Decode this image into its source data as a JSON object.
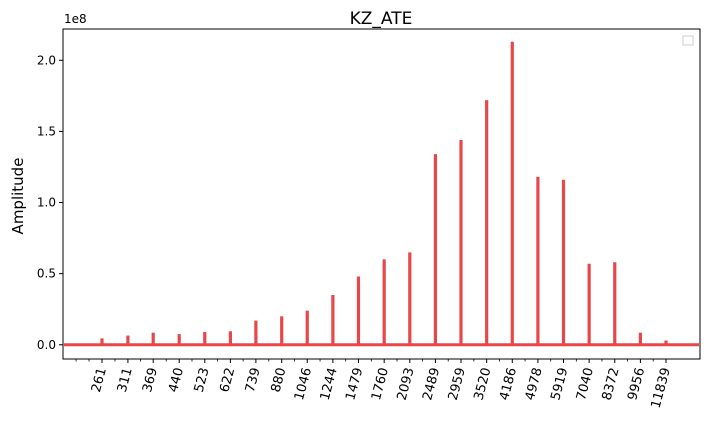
{
  "chart_data": {
    "type": "line",
    "title": "KZ_ATE",
    "xlabel": "",
    "ylabel": "Amplitude",
    "y_multiplier_label": "1e8",
    "ylim": [
      -0.1,
      2.22
    ],
    "yticks": [
      0.0,
      0.5,
      1.0,
      1.5,
      2.0
    ],
    "ytick_labels": [
      "0.0",
      "0.5",
      "1.0",
      "1.5",
      "2.0"
    ],
    "x_scale": "log",
    "xtick_labels": [
      "261",
      "311",
      "369",
      "440",
      "523",
      "622",
      "739",
      "880",
      "1046",
      "1244",
      "1479",
      "1760",
      "2093",
      "2489",
      "2959",
      "3520",
      "4186",
      "4978",
      "5919",
      "7040",
      "8372",
      "9956",
      "11839"
    ],
    "xticks": [
      261,
      311,
      369,
      440,
      523,
      622,
      739,
      880,
      1046,
      1244,
      1479,
      1760,
      2093,
      2489,
      2959,
      3520,
      4186,
      4978,
      5919,
      7040,
      8372,
      9956,
      11839
    ],
    "series": [
      {
        "color": "#e8474a",
        "peaks": [
          {
            "x": 261,
            "y": 0.045
          },
          {
            "x": 311,
            "y": 0.065
          },
          {
            "x": 369,
            "y": 0.085
          },
          {
            "x": 440,
            "y": 0.075
          },
          {
            "x": 523,
            "y": 0.09
          },
          {
            "x": 622,
            "y": 0.095
          },
          {
            "x": 739,
            "y": 0.17
          },
          {
            "x": 880,
            "y": 0.2
          },
          {
            "x": 1046,
            "y": 0.24
          },
          {
            "x": 1244,
            "y": 0.35
          },
          {
            "x": 1479,
            "y": 0.48
          },
          {
            "x": 1760,
            "y": 0.6
          },
          {
            "x": 2093,
            "y": 0.65
          },
          {
            "x": 2489,
            "y": 1.34
          },
          {
            "x": 2959,
            "y": 1.44
          },
          {
            "x": 3520,
            "y": 1.72
          },
          {
            "x": 4186,
            "y": 2.13
          },
          {
            "x": 4978,
            "y": 1.18
          },
          {
            "x": 5919,
            "y": 1.16
          },
          {
            "x": 7040,
            "y": 0.57
          },
          {
            "x": 8372,
            "y": 0.58
          },
          {
            "x": 9956,
            "y": 0.085
          },
          {
            "x": 11839,
            "y": 0.03
          }
        ]
      }
    ],
    "grid": false,
    "legend": "top-right (empty)"
  }
}
